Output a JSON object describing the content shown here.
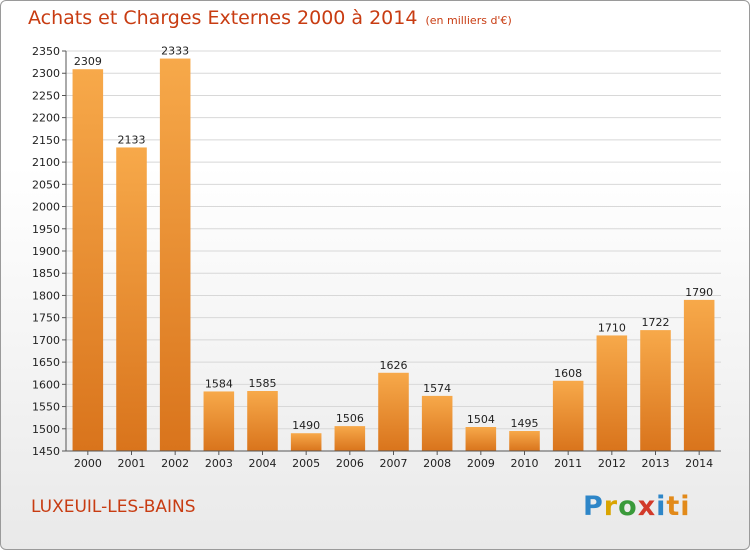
{
  "title": "Achats et Charges Externes 2000 à 2014",
  "subtitle": "(en milliers d'€)",
  "city": "LUXEUIL-LES-BAINS",
  "brand": {
    "text": "Proxiti",
    "letters": [
      "P",
      "r",
      "o",
      "x",
      "i",
      "ti"
    ]
  },
  "colors": {
    "title": "#c83c12",
    "bar_light": "#f7a94a",
    "bar_dark": "#d9741c",
    "grid": "#d8d8d8",
    "axis_text": "#222222"
  },
  "chart_data": {
    "type": "bar",
    "title": "Achats et Charges Externes 2000 à 2014",
    "subtitle": "(en milliers d'€)",
    "xlabel": "",
    "ylabel": "",
    "categories": [
      "2000",
      "2001",
      "2002",
      "2003",
      "2004",
      "2005",
      "2006",
      "2007",
      "2008",
      "2009",
      "2010",
      "2011",
      "2012",
      "2013",
      "2014"
    ],
    "values": [
      2309,
      2133,
      2333,
      1584,
      1585,
      1490,
      1506,
      1626,
      1574,
      1504,
      1495,
      1608,
      1710,
      1722,
      1790
    ],
    "ylim": [
      1450,
      2350
    ],
    "yticks": [
      1450,
      1500,
      1550,
      1600,
      1650,
      1700,
      1750,
      1800,
      1850,
      1900,
      1950,
      2000,
      2050,
      2100,
      2150,
      2200,
      2250,
      2300,
      2350
    ],
    "grid": true,
    "data_labels": true
  }
}
